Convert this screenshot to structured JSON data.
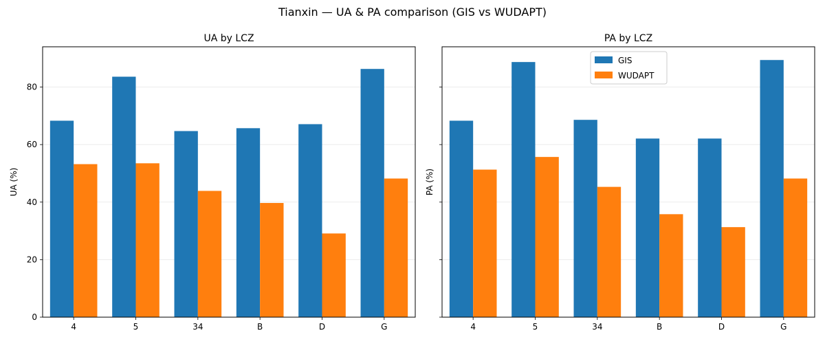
{
  "figure_title": "Tianxin — UA & PA comparison (GIS vs WUDAPT)",
  "series_colors": {
    "GIS": "#1f77b4",
    "WUDAPT": "#ff7f0e"
  },
  "chart_data": [
    {
      "type": "bar",
      "title": "UA by LCZ",
      "xlabel": "",
      "ylabel": "UA (%)",
      "categories": [
        "4",
        "5",
        "34",
        "B",
        "D",
        "G"
      ],
      "ylim": [
        0,
        94
      ],
      "yticks": [
        0,
        20,
        40,
        60,
        80
      ],
      "grid": "horizontal",
      "legend": "none",
      "series": [
        {
          "name": "GIS",
          "values": [
            68.3,
            83.6,
            64.7,
            65.7,
            67.1,
            86.3
          ]
        },
        {
          "name": "WUDAPT",
          "values": [
            53.2,
            53.5,
            43.9,
            39.7,
            29.1,
            48.2
          ]
        }
      ]
    },
    {
      "type": "bar",
      "title": "PA by LCZ",
      "xlabel": "",
      "ylabel": "PA (%)",
      "categories": [
        "4",
        "5",
        "34",
        "B",
        "D",
        "G"
      ],
      "ylim": [
        0,
        94
      ],
      "yticks": [
        0,
        20,
        40,
        60,
        80
      ],
      "grid": "horizontal",
      "legend": "upper center",
      "series": [
        {
          "name": "GIS",
          "values": [
            68.3,
            88.7,
            68.6,
            62.1,
            62.1,
            89.4
          ]
        },
        {
          "name": "WUDAPT",
          "values": [
            51.3,
            55.7,
            45.3,
            35.8,
            31.3,
            48.2
          ]
        }
      ]
    }
  ]
}
